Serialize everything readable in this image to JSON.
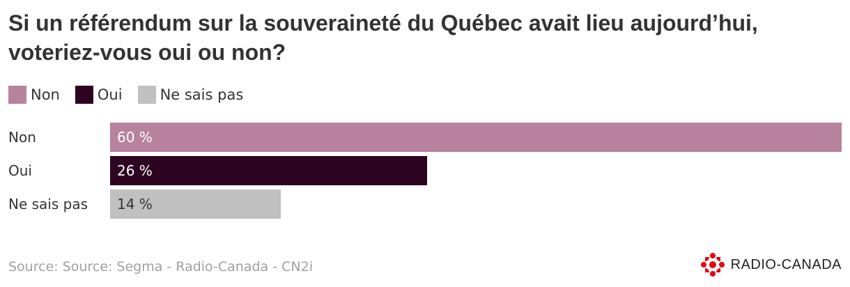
{
  "title": "Si un référendum sur la souveraineté du Québec avait lieu aujourd’hui, voteriez-vous oui ou non?",
  "legend": [
    {
      "label": "Non",
      "color": "#b7829e"
    },
    {
      "label": "Oui",
      "color": "#2e0520"
    },
    {
      "label": "Ne sais pas",
      "color": "#c0c0c0"
    }
  ],
  "chart_data": {
    "type": "bar",
    "orientation": "horizontal",
    "categories": [
      "Non",
      "Oui",
      "Ne sais pas"
    ],
    "values": [
      60,
      26,
      14
    ],
    "value_labels": [
      "60 %",
      "26 %",
      "14 %"
    ],
    "colors": [
      "#b7829e",
      "#2e0520",
      "#c0c0c0"
    ],
    "value_label_colors": [
      "#ffffff",
      "#ffffff",
      "#333333"
    ],
    "xlim": [
      0,
      60
    ],
    "grid": false,
    "legend_position": "top-left"
  },
  "source": "Source: Source: Segma - Radio-Canada - CN2i",
  "logo": {
    "text": "RADIO-CANADA",
    "icon": "radio-canada-gem-icon",
    "color": "#e30613"
  }
}
